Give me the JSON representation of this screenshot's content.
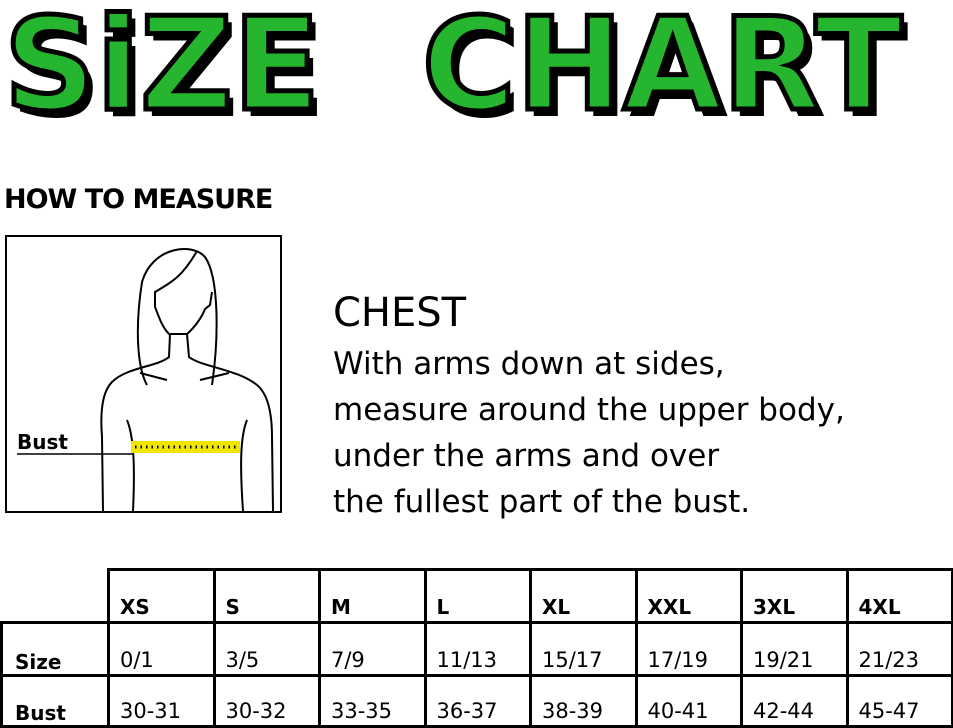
{
  "title": {
    "word1": "SiZE",
    "word2": "CHART",
    "color": "#25b52e"
  },
  "how_to_measure": {
    "heading": "HOW TO MEASURE",
    "figure_label": "Bust",
    "tape_color": "#f2e600"
  },
  "chest": {
    "title": "CHEST",
    "lines": [
      "With arms down at sides,",
      "measure around the upper body,",
      "under the arms and over",
      "the fullest part of the bust."
    ]
  },
  "table": {
    "headers": [
      "XS",
      "S",
      "M",
      "L",
      "XL",
      "XXL",
      "3XL",
      "4XL"
    ],
    "rows": [
      {
        "label": "Size",
        "values": [
          "0/1",
          "3/5",
          "7/9",
          "11/13",
          "15/17",
          "17/19",
          "19/21",
          "21/23"
        ]
      },
      {
        "label": "Bust",
        "values": [
          "30-31",
          "30-32",
          "33-35",
          "36-37",
          "38-39",
          "40-41",
          "42-44",
          "45-47"
        ]
      }
    ]
  }
}
